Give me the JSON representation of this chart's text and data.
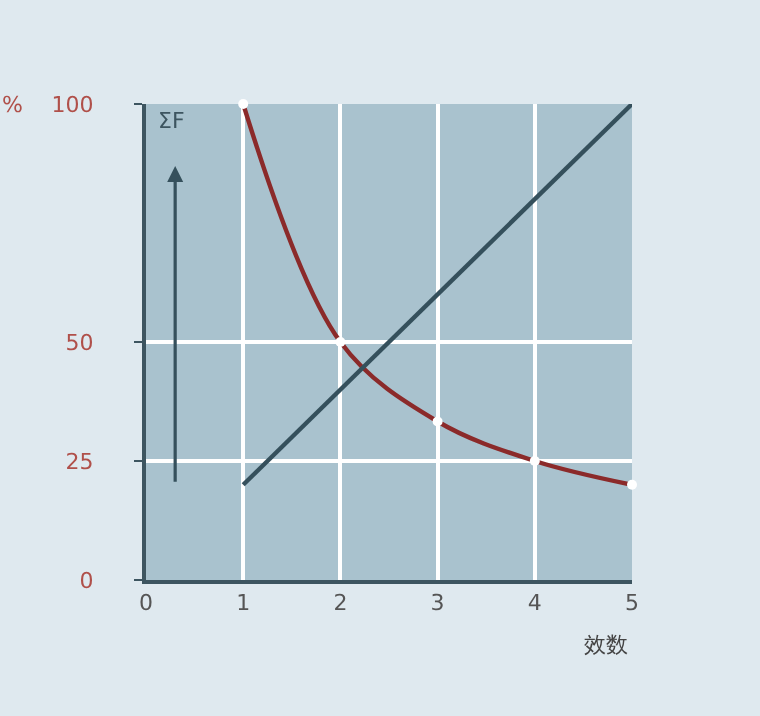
{
  "chart_data": {
    "type": "line",
    "ylabel": "%",
    "xlabel": "效数",
    "annotations": [
      "ΣF"
    ],
    "series": [
      {
        "x": [
          1,
          2,
          3,
          4,
          5
        ],
        "values": [
          100,
          50,
          33.3,
          25,
          20
        ],
        "color": "#8b2a2a",
        "marker": "circle"
      },
      {
        "x": [
          1,
          5
        ],
        "values": [
          20,
          100
        ],
        "color": "#35505c",
        "marker": "none"
      }
    ],
    "xlim": [
      0,
      5
    ],
    "xticks": [
      0,
      1,
      2,
      3,
      4,
      5
    ],
    "ylim": [
      0,
      100
    ],
    "yticks": [
      0,
      25,
      50,
      100
    ],
    "grid": true
  }
}
